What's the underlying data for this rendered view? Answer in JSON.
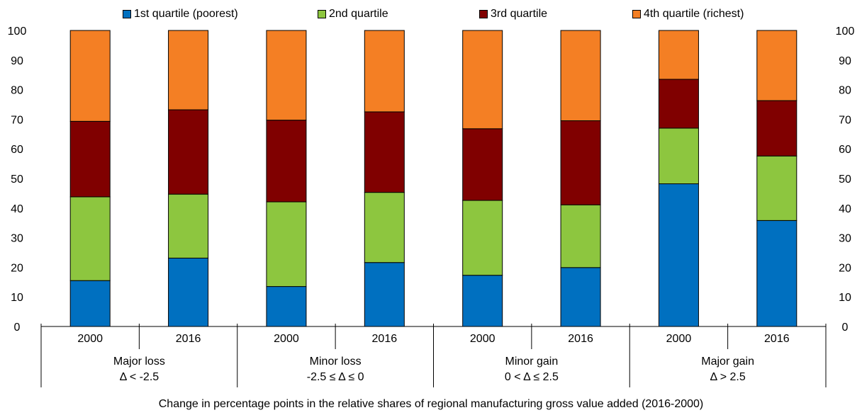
{
  "chart_data": {
    "type": "bar",
    "stacked": true,
    "title": "",
    "xlabel": "Change in percentage points in the relative shares of regional manufacturing gross value added (2016-2000)",
    "ylabel": "",
    "ylim": [
      0,
      100
    ],
    "yticks": [
      0,
      10,
      20,
      30,
      40,
      50,
      60,
      70,
      80,
      90,
      100
    ],
    "right_axis": true,
    "grid": false,
    "legend_position": "top",
    "groups": [
      {
        "label_line1": "Major loss",
        "label_line2": "Δ < -2.5"
      },
      {
        "label_line1": "Minor loss",
        "label_line2": "-2.5 ≤ Δ ≤ 0"
      },
      {
        "label_line1": "Minor gain",
        "label_line2": "0 < Δ ≤ 2.5"
      },
      {
        "label_line1": "Major gain",
        "label_line2": "Δ > 2.5"
      }
    ],
    "categories": [
      "2000",
      "2016",
      "2000",
      "2016",
      "2000",
      "2016",
      "2000",
      "2016"
    ],
    "series": [
      {
        "name": "1st quartile (poorest)",
        "color": "#0070C0",
        "values": [
          15.5,
          23.1,
          13.5,
          21.6,
          17.3,
          19.9,
          48.2,
          35.8
        ]
      },
      {
        "name": "2nd quartile",
        "color": "#8DC63F",
        "values": [
          28.3,
          21.6,
          28.6,
          23.7,
          25.3,
          21.2,
          18.8,
          21.8
        ]
      },
      {
        "name": "3rd quartile",
        "color": "#800000",
        "values": [
          25.5,
          28.5,
          27.6,
          27.2,
          24.2,
          28.4,
          16.5,
          18.7
        ]
      },
      {
        "name": "4th quartile (richest)",
        "color": "#F47F24",
        "values": [
          30.7,
          26.8,
          30.3,
          27.5,
          33.2,
          30.5,
          16.5,
          23.7
        ]
      }
    ]
  }
}
